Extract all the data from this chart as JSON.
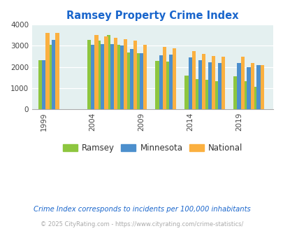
{
  "title": "Ramsey Property Crime Index",
  "title_color": "#1a66cc",
  "subtitle": "Crime Index corresponds to incidents per 100,000 inhabitants",
  "copyright": "© 2025 CityRating.com - https://www.cityrating.com/crime-statistics/",
  "years": [
    1999,
    2000,
    2004,
    2005,
    2006,
    2007,
    2008,
    2009,
    2011,
    2012,
    2014,
    2015,
    2016,
    2017,
    2019,
    2020,
    2021
  ],
  "ramsey": [
    2330,
    3040,
    3270,
    3260,
    3520,
    3060,
    2680,
    2660,
    2300,
    2240,
    1590,
    1420,
    1400,
    1310,
    1570,
    1310,
    1060
  ],
  "minnesota": [
    2320,
    3280,
    3040,
    3090,
    3090,
    3030,
    2860,
    2650,
    2560,
    2590,
    2460,
    2310,
    2230,
    2200,
    2170,
    2000,
    2090
  ],
  "national": [
    3620,
    3620,
    3520,
    3450,
    3390,
    3310,
    3250,
    3060,
    2940,
    2880,
    2750,
    2610,
    2510,
    2500,
    2490,
    2200,
    2100
  ],
  "ramsey_color": "#8dc63f",
  "minnesota_color": "#4c8fcd",
  "national_color": "#fbb040",
  "bg_color": "#e4f0f0",
  "ylim": [
    0,
    4000
  ],
  "yticks": [
    0,
    1000,
    2000,
    3000,
    4000
  ],
  "tick_years": [
    1999,
    2004,
    2009,
    2014,
    2019
  ],
  "legend_labels": [
    "Ramsey",
    "Minnesota",
    "National"
  ],
  "subtitle_color": "#1a66cc",
  "copyright_color": "#aaaaaa"
}
